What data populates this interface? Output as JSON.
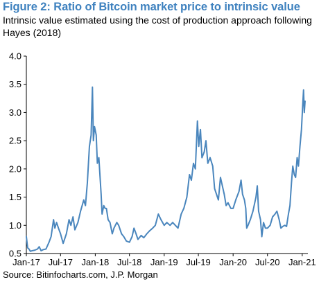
{
  "figure": {
    "title": "Figure 2: Ratio of Bitcoin market price to intrinsic value",
    "subtitle": "Intrinsic value estimated using the cost of production approach following Hayes (2018)",
    "source": "Source: Bitinfocharts.com, J.P. Morgan",
    "title_color": "#3F82BF",
    "line_color": "#4A86BD"
  },
  "chart_data": {
    "type": "line",
    "title": "Figure 2: Ratio of Bitcoin market price to intrinsic value",
    "subtitle": "Intrinsic value estimated using the cost of production approach following Hayes (2018)",
    "xlabel": "",
    "ylabel": "",
    "xlim": [
      "2017-01-01",
      "2021-01-31"
    ],
    "ylim": [
      0.5,
      4.0
    ],
    "yticks": [
      0.5,
      1.0,
      1.5,
      2.0,
      2.5,
      3.0,
      3.5,
      4.0
    ],
    "ytick_labels": [
      "0.5",
      "1.0",
      "1.5",
      "2.0",
      "2.5",
      "3.0",
      "3.5",
      "4.0"
    ],
    "xticks": [
      "2017-01-01",
      "2017-07-01",
      "2018-01-01",
      "2018-07-01",
      "2019-01-01",
      "2019-07-01",
      "2020-01-01",
      "2020-07-01",
      "2021-01-01"
    ],
    "xtick_labels": [
      "Jan-17",
      "Jul-17",
      "Jan-18",
      "Jul-18",
      "Jan-19",
      "Jul-19",
      "Jan-20",
      "Jul-20",
      "Jan-21"
    ],
    "grid": false,
    "legend": "none",
    "series": [
      {
        "points": [
          [
            "2017-01-01",
            0.8
          ],
          [
            "2017-01-08",
            0.6
          ],
          [
            "2017-01-15",
            0.58
          ],
          [
            "2017-01-22",
            0.54
          ],
          [
            "2017-02-01",
            0.55
          ],
          [
            "2017-02-15",
            0.56
          ],
          [
            "2017-03-01",
            0.58
          ],
          [
            "2017-03-10",
            0.62
          ],
          [
            "2017-03-20",
            0.55
          ],
          [
            "2017-04-01",
            0.57
          ],
          [
            "2017-04-15",
            0.58
          ],
          [
            "2017-05-01",
            0.7
          ],
          [
            "2017-05-12",
            0.8
          ],
          [
            "2017-05-25",
            1.1
          ],
          [
            "2017-06-01",
            0.95
          ],
          [
            "2017-06-10",
            1.05
          ],
          [
            "2017-06-20",
            0.95
          ],
          [
            "2017-07-01",
            0.85
          ],
          [
            "2017-07-15",
            0.68
          ],
          [
            "2017-08-01",
            0.85
          ],
          [
            "2017-08-15",
            1.1
          ],
          [
            "2017-08-25",
            1.0
          ],
          [
            "2017-09-05",
            1.15
          ],
          [
            "2017-09-15",
            0.92
          ],
          [
            "2017-10-01",
            1.05
          ],
          [
            "2017-10-15",
            1.25
          ],
          [
            "2017-11-01",
            1.45
          ],
          [
            "2017-11-10",
            1.35
          ],
          [
            "2017-11-20",
            1.75
          ],
          [
            "2017-12-01",
            2.4
          ],
          [
            "2017-12-10",
            2.6
          ],
          [
            "2017-12-17",
            3.45
          ],
          [
            "2017-12-22",
            2.5
          ],
          [
            "2017-12-28",
            2.75
          ],
          [
            "2018-01-06",
            2.6
          ],
          [
            "2018-01-12",
            2.1
          ],
          [
            "2018-01-20",
            2.2
          ],
          [
            "2018-02-01",
            1.55
          ],
          [
            "2018-02-06",
            1.2
          ],
          [
            "2018-02-15",
            1.35
          ],
          [
            "2018-02-22",
            1.3
          ],
          [
            "2018-03-01",
            1.3
          ],
          [
            "2018-03-10",
            1.1
          ],
          [
            "2018-03-20",
            1.05
          ],
          [
            "2018-04-01",
            0.85
          ],
          [
            "2018-04-10",
            0.95
          ],
          [
            "2018-04-25",
            1.05
          ],
          [
            "2018-05-05",
            1.0
          ],
          [
            "2018-05-20",
            0.85
          ],
          [
            "2018-06-01",
            0.8
          ],
          [
            "2018-06-15",
            0.72
          ],
          [
            "2018-07-01",
            0.7
          ],
          [
            "2018-07-15",
            0.8
          ],
          [
            "2018-07-25",
            0.95
          ],
          [
            "2018-08-05",
            0.85
          ],
          [
            "2018-08-15",
            0.75
          ],
          [
            "2018-09-01",
            0.82
          ],
          [
            "2018-09-15",
            0.78
          ],
          [
            "2018-10-01",
            0.85
          ],
          [
            "2018-10-15",
            0.9
          ],
          [
            "2018-11-01",
            0.95
          ],
          [
            "2018-11-15",
            1.0
          ],
          [
            "2018-12-01",
            1.2
          ],
          [
            "2018-12-15",
            1.1
          ],
          [
            "2019-01-01",
            1.0
          ],
          [
            "2019-01-15",
            1.05
          ],
          [
            "2019-02-01",
            1.0
          ],
          [
            "2019-02-15",
            1.05
          ],
          [
            "2019-03-01",
            1.0
          ],
          [
            "2019-03-15",
            0.95
          ],
          [
            "2019-04-01",
            1.2
          ],
          [
            "2019-04-15",
            1.3
          ],
          [
            "2019-05-01",
            1.5
          ],
          [
            "2019-05-15",
            1.9
          ],
          [
            "2019-05-25",
            1.8
          ],
          [
            "2019-06-05",
            2.1
          ],
          [
            "2019-06-15",
            2.0
          ],
          [
            "2019-06-26",
            2.85
          ],
          [
            "2019-07-03",
            2.4
          ],
          [
            "2019-07-12",
            2.7
          ],
          [
            "2019-07-20",
            2.2
          ],
          [
            "2019-08-01",
            2.3
          ],
          [
            "2019-08-10",
            2.5
          ],
          [
            "2019-08-20",
            2.1
          ],
          [
            "2019-09-01",
            2.2
          ],
          [
            "2019-09-15",
            2.05
          ],
          [
            "2019-09-25",
            1.65
          ],
          [
            "2019-10-05",
            1.55
          ],
          [
            "2019-10-15",
            1.45
          ],
          [
            "2019-10-26",
            1.85
          ],
          [
            "2019-11-05",
            1.7
          ],
          [
            "2019-11-15",
            1.55
          ],
          [
            "2019-11-25",
            1.35
          ],
          [
            "2019-12-05",
            1.4
          ],
          [
            "2019-12-20",
            1.3
          ],
          [
            "2020-01-01",
            1.3
          ],
          [
            "2020-01-15",
            1.45
          ],
          [
            "2020-02-01",
            1.6
          ],
          [
            "2020-02-12",
            1.8
          ],
          [
            "2020-02-20",
            1.55
          ],
          [
            "2020-03-01",
            1.45
          ],
          [
            "2020-03-08",
            1.3
          ],
          [
            "2020-03-13",
            0.95
          ],
          [
            "2020-03-20",
            1.0
          ],
          [
            "2020-04-01",
            1.1
          ],
          [
            "2020-04-15",
            1.25
          ],
          [
            "2020-05-01",
            1.5
          ],
          [
            "2020-05-08",
            1.7
          ],
          [
            "2020-05-15",
            1.25
          ],
          [
            "2020-05-25",
            1.1
          ],
          [
            "2020-06-01",
            0.8
          ],
          [
            "2020-06-10",
            1.05
          ],
          [
            "2020-06-20",
            0.95
          ],
          [
            "2020-07-01",
            0.95
          ],
          [
            "2020-07-15",
            1.0
          ],
          [
            "2020-07-28",
            1.15
          ],
          [
            "2020-08-10",
            1.2
          ],
          [
            "2020-08-20",
            1.25
          ],
          [
            "2020-09-01",
            1.1
          ],
          [
            "2020-09-10",
            0.95
          ],
          [
            "2020-09-20",
            0.98
          ],
          [
            "2020-10-01",
            1.0
          ],
          [
            "2020-10-10",
            0.98
          ],
          [
            "2020-10-20",
            1.2
          ],
          [
            "2020-10-28",
            1.35
          ],
          [
            "2020-11-05",
            1.75
          ],
          [
            "2020-11-12",
            2.05
          ],
          [
            "2020-11-20",
            1.9
          ],
          [
            "2020-11-27",
            1.85
          ],
          [
            "2020-12-05",
            2.2
          ],
          [
            "2020-12-12",
            2.05
          ],
          [
            "2020-12-20",
            2.4
          ],
          [
            "2020-12-28",
            2.7
          ],
          [
            "2021-01-03",
            3.1
          ],
          [
            "2021-01-08",
            3.4
          ],
          [
            "2021-01-12",
            3.0
          ],
          [
            "2021-01-16",
            3.2
          ]
        ]
      }
    ]
  }
}
